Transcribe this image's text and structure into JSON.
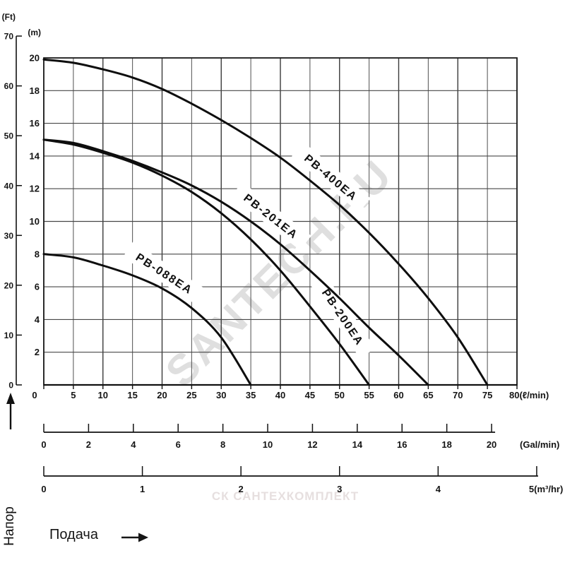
{
  "chart_data": {
    "type": "line",
    "title": "",
    "grid": true,
    "legend_position": "on-curve",
    "x_axes": [
      {
        "id": "lmin",
        "unit": "(ℓ/min)",
        "min": 0,
        "max": 80,
        "step": 5,
        "ticks": [
          0,
          5,
          10,
          15,
          20,
          25,
          30,
          35,
          40,
          45,
          50,
          55,
          60,
          65,
          70,
          75,
          80
        ]
      },
      {
        "id": "gal",
        "unit": "(Gal/min)",
        "min": 0,
        "max": 20,
        "step": 2,
        "lmin_per_unit": 3.7854,
        "ticks": [
          0,
          2,
          4,
          6,
          8,
          10,
          12,
          14,
          16,
          18,
          20
        ]
      },
      {
        "id": "m3hr",
        "unit": "(m³/hr)",
        "min": 0,
        "max": 5,
        "step": 1,
        "lmin_per_unit": 16.6667,
        "ticks": [
          0,
          1,
          2,
          3,
          4,
          5
        ]
      }
    ],
    "y_axes": [
      {
        "id": "m",
        "unit": "(m)",
        "min": 0,
        "max": 20,
        "step": 2,
        "ticks": [
          2,
          4,
          6,
          8,
          10,
          12,
          14,
          16,
          18,
          20
        ]
      },
      {
        "id": "ft",
        "unit": "(Ft)",
        "min": 0,
        "max": 70,
        "step": 10,
        "m_per_unit": 0.3048,
        "ticks": [
          0,
          10,
          20,
          30,
          40,
          50,
          60,
          70
        ]
      }
    ],
    "series": [
      {
        "name": "PB-400EA",
        "x": [
          0,
          5,
          10,
          15,
          20,
          25,
          30,
          35,
          40,
          45,
          50,
          55,
          60,
          65,
          70,
          75
        ],
        "head_m": [
          19.9,
          19.7,
          19.3,
          18.8,
          18.1,
          17.2,
          16.2,
          15.1,
          13.9,
          12.5,
          11.0,
          9.3,
          7.4,
          5.3,
          2.9,
          0
        ]
      },
      {
        "name": "PB-201EA",
        "x": [
          0,
          5,
          10,
          15,
          20,
          25,
          30,
          35,
          40,
          45,
          50,
          55,
          60,
          65
        ],
        "head_m": [
          15.0,
          14.8,
          14.3,
          13.7,
          13.0,
          12.2,
          11.2,
          10.0,
          8.6,
          7.0,
          5.3,
          3.5,
          1.8,
          0
        ]
      },
      {
        "name": "PB-200EA",
        "x": [
          0,
          5,
          10,
          15,
          20,
          25,
          30,
          35,
          40,
          45,
          50,
          55
        ],
        "head_m": [
          15.0,
          14.7,
          14.2,
          13.6,
          12.8,
          11.8,
          10.5,
          8.9,
          7.0,
          4.8,
          2.5,
          0
        ]
      },
      {
        "name": "PB-088EA",
        "x": [
          0,
          5,
          10,
          15,
          20,
          25,
          30,
          35
        ],
        "head_m": [
          8.0,
          7.8,
          7.3,
          6.7,
          5.9,
          4.7,
          2.9,
          0
        ]
      }
    ]
  },
  "labels": {
    "head_axis_title": "Напор",
    "flow_axis_title": "Подача"
  },
  "watermarks": {
    "diagonal": "SANTECH.RU",
    "bottom": "СК САНТЕХКОМПЛЕКТ"
  }
}
